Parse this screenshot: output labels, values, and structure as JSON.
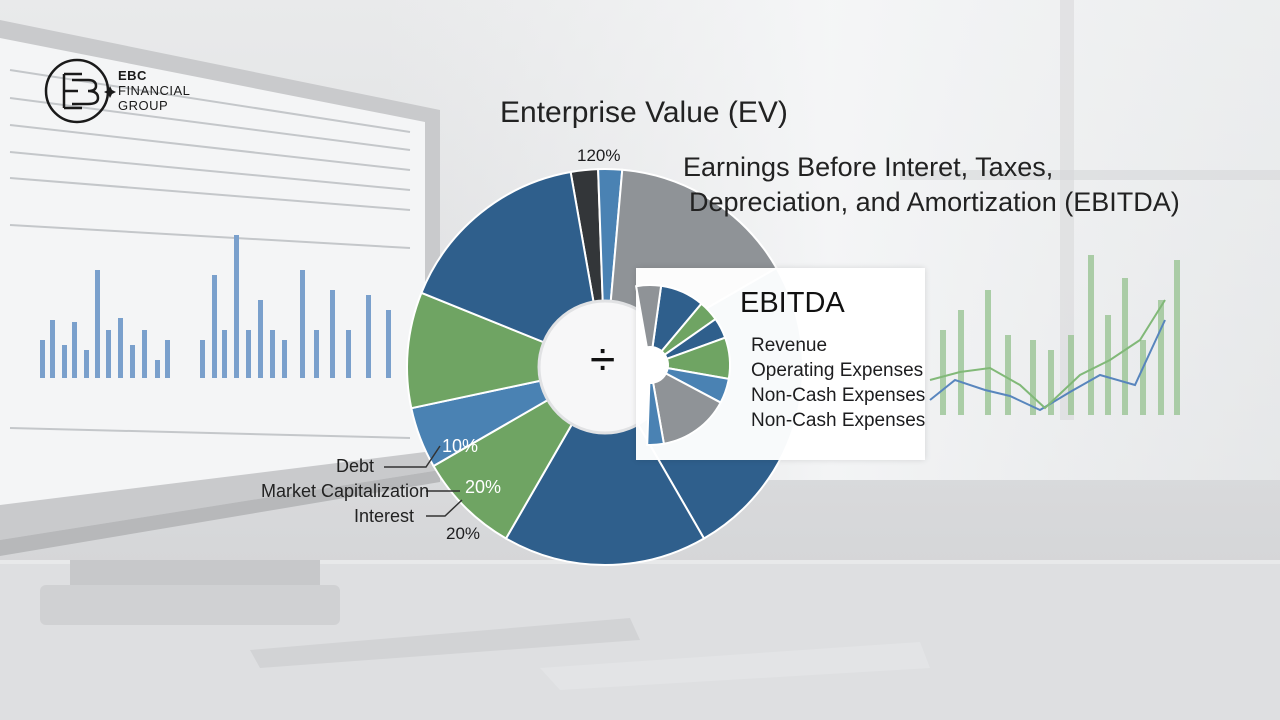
{
  "brand": {
    "line1": "EBC",
    "line2": "FINANCIAL",
    "line3": "GROUP",
    "icon": "ebc-logo-icon"
  },
  "diagram": {
    "title": "Enterprise Value (EV)",
    "subtitle_line1": "Earnings Before Interet, Taxes,",
    "subtitle_line2": "Depreciation, and Amortization (EBITDA)",
    "top_percent": "120%",
    "operator_symbol": "÷",
    "bottom_percent": "20%"
  },
  "ev_legend": [
    {
      "label": "Debt"
    },
    {
      "label": "Market Capitalization"
    },
    {
      "label": "Interest"
    }
  ],
  "slice_labels": [
    {
      "text": "10%"
    },
    {
      "text": "20%"
    }
  ],
  "ebitda_panel": {
    "title": "EBITDA",
    "items": [
      "Revenue",
      "Operating Expenses",
      "Non-Cash Expenses",
      "Non-Cash Expenses"
    ]
  },
  "colors": {
    "navy": "#2f5f8c",
    "blue": "#4a82b3",
    "green": "#6fa463",
    "gray": "#8f9397",
    "dark": "#333639"
  }
}
